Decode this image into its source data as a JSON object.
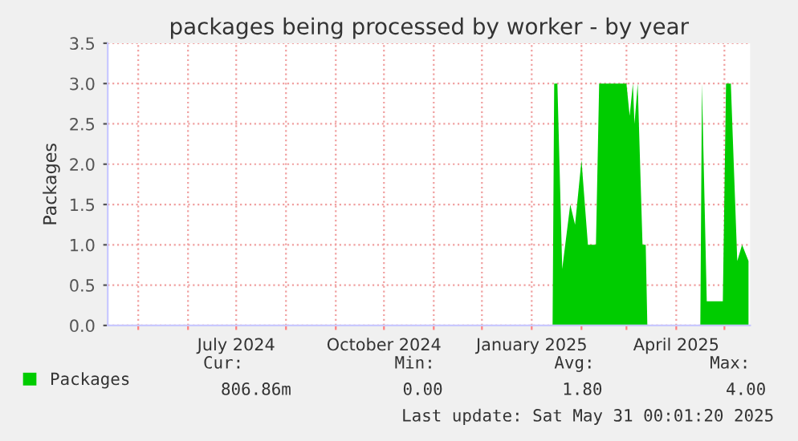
{
  "chart_data": {
    "type": "area",
    "title": "packages being processed by worker - by year",
    "ylabel": "Packages",
    "x": [
      "2024-04-12",
      "2025-01-14",
      "2025-01-15",
      "2025-01-17",
      "2025-01-20",
      "2025-01-25",
      "2025-01-28",
      "2025-02-01",
      "2025-02-05",
      "2025-02-10",
      "2025-02-12",
      "2025-03-01",
      "2025-03-03",
      "2025-03-05",
      "2025-03-06",
      "2025-03-08",
      "2025-03-11",
      "2025-03-13",
      "2025-03-14",
      "2025-04-16",
      "2025-04-17",
      "2025-04-20",
      "2025-04-25",
      "2025-04-30",
      "2025-05-02",
      "2025-05-05",
      "2025-05-09",
      "2025-05-12",
      "2025-05-16"
    ],
    "series": [
      {
        "name": "Packages",
        "color": "#00cc00",
        "values": [
          0,
          0,
          3.0,
          3.0,
          0.7,
          1.5,
          1.25,
          2.05,
          1.0,
          1.0,
          3.0,
          3.0,
          2.6,
          3.0,
          2.5,
          3.0,
          1.0,
          1.0,
          0,
          0,
          3.0,
          0.3,
          0.3,
          0.3,
          3.0,
          3.0,
          0.8,
          1.0,
          0.8
        ]
      }
    ],
    "xlim": [
      "2024-04-12",
      "2025-05-17"
    ],
    "xticks": [
      {
        "value": "2024-05-01",
        "label": null
      },
      {
        "value": "2024-06-01",
        "label": null
      },
      {
        "value": "2024-07-01",
        "label": "July 2024"
      },
      {
        "value": "2024-08-01",
        "label": null
      },
      {
        "value": "2024-09-01",
        "label": null
      },
      {
        "value": "2024-10-01",
        "label": "October 2024"
      },
      {
        "value": "2024-11-01",
        "label": null
      },
      {
        "value": "2024-12-01",
        "label": null
      },
      {
        "value": "2025-01-01",
        "label": "January 2025"
      },
      {
        "value": "2025-02-01",
        "label": null
      },
      {
        "value": "2025-03-01",
        "label": null
      },
      {
        "value": "2025-04-01",
        "label": "April 2025"
      },
      {
        "value": "2025-05-01",
        "label": null
      }
    ],
    "ylim": [
      0,
      3.5
    ],
    "yticks": [
      {
        "value": 0,
        "label": "0.0"
      },
      {
        "value": 0.5,
        "label": "0.5"
      },
      {
        "value": 1.0,
        "label": "1.0"
      },
      {
        "value": 1.5,
        "label": "1.5"
      },
      {
        "value": 2.0,
        "label": "2.0"
      },
      {
        "value": 2.5,
        "label": "2.5"
      },
      {
        "value": 3.0,
        "label": "3.0"
      },
      {
        "value": 3.5,
        "label": "3.5"
      }
    ],
    "grid": true,
    "legend": "bottom",
    "annotations": [
      "Cur:",
      "Min:",
      "Avg:",
      "Max:",
      "806.86m",
      "0.00",
      "1.80",
      "4.00",
      "Last update: Sat May 31 00:01:20 2025"
    ]
  }
}
